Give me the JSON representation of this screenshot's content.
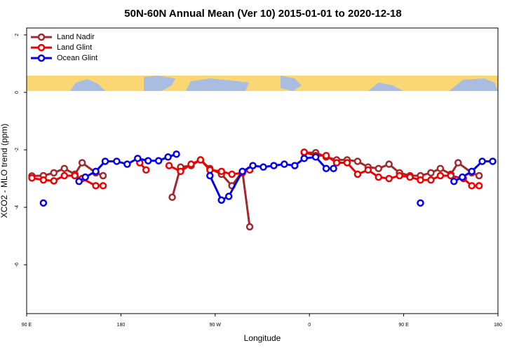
{
  "chart_data": {
    "type": "line",
    "title": "50N-60N Annual Mean (Ver 10)   2015-01-01 to 2020-12-18",
    "x_label": "Longitude",
    "y_label": "XCO2 - MLO trend (ppm)",
    "xlim": [
      90,
      540
    ],
    "xticks": [
      {
        "value": 90,
        "label": "90 E"
      },
      {
        "value": 180,
        "label": "180"
      },
      {
        "value": 270,
        "label": "90 W"
      },
      {
        "value": 360,
        "label": "0"
      },
      {
        "value": 450,
        "label": "90 E"
      },
      {
        "value": 540,
        "label": "180"
      }
    ],
    "ylim": [
      -7.7,
      2.24
    ],
    "yticks": [
      2,
      0,
      -2,
      -4,
      -6
    ],
    "legend": "top-left",
    "series": [
      {
        "name": "Land Nadir",
        "color": "#a0292b",
        "x": [
          95,
          106,
          116,
          126,
          136,
          143,
          156,
          163,
          null,
          229,
          237,
          247,
          256,
          265,
          276,
          286,
          296,
          303,
          null,
          355,
          366,
          376,
          386,
          396,
          406,
          416,
          426,
          436,
          446,
          456,
          466,
          476,
          485,
          495,
          502,
          515,
          522
        ],
        "values": [
          -2.91,
          -2.9,
          -2.8,
          -2.65,
          -2.85,
          -2.45,
          -2.8,
          -2.9,
          null,
          -3.65,
          -2.6,
          -2.55,
          -2.35,
          -2.65,
          -2.85,
          -3.25,
          -2.75,
          -4.68,
          null,
          -2.1,
          -2.1,
          -2.25,
          -2.35,
          -2.35,
          -2.4,
          -2.6,
          -2.65,
          -2.5,
          -2.8,
          -2.9,
          -2.9,
          -2.8,
          -2.65,
          -2.85,
          -2.45,
          -2.8,
          -2.9
        ]
      },
      {
        "name": "Land Glint",
        "color": "#ee0000",
        "x": [
          95,
          106,
          116,
          126,
          136,
          143,
          156,
          163,
          null,
          198,
          204,
          null,
          226,
          237,
          247,
          256,
          265,
          276,
          286,
          296,
          303,
          null,
          355,
          366,
          376,
          386,
          396,
          406,
          416,
          426,
          436,
          446,
          456,
          466,
          476,
          485,
          495,
          507,
          515,
          522
        ],
        "values": [
          -2.98,
          -3.05,
          -3.08,
          -2.9,
          -2.9,
          -3.0,
          -3.25,
          -3.25,
          null,
          -2.45,
          -2.7,
          null,
          -2.55,
          -2.75,
          -2.5,
          -2.35,
          -2.7,
          -2.75,
          -2.85,
          -2.8,
          -2.7,
          null,
          -2.08,
          -2.2,
          -2.2,
          -2.45,
          -2.45,
          -2.85,
          -2.7,
          -2.95,
          -3.0,
          -2.9,
          -2.95,
          -3.05,
          -3.05,
          -2.9,
          -2.9,
          -3.0,
          -3.25,
          -3.25
        ]
      },
      {
        "name": "Ocean Glint",
        "color": "#0000ee",
        "x": [
          106,
          null,
          140,
          146,
          156,
          165,
          176,
          186,
          196,
          206,
          216,
          225,
          233,
          null,
          265,
          276,
          283,
          296,
          306,
          316,
          326,
          336,
          346,
          355,
          366,
          376,
          383,
          null,
          466,
          null,
          498,
          506,
          515,
          525,
          535
        ],
        "values": [
          -3.85,
          null,
          -3.1,
          -2.95,
          -2.75,
          -2.4,
          -2.4,
          -2.5,
          -2.3,
          -2.38,
          -2.38,
          -2.25,
          -2.15,
          null,
          -2.9,
          -3.75,
          -3.62,
          -2.75,
          -2.55,
          -2.6,
          -2.55,
          -2.5,
          -2.55,
          -2.3,
          -2.25,
          -2.65,
          -2.65,
          null,
          -3.85,
          null,
          -3.1,
          -2.95,
          -2.75,
          -2.4,
          -2.4
        ]
      }
    ]
  }
}
